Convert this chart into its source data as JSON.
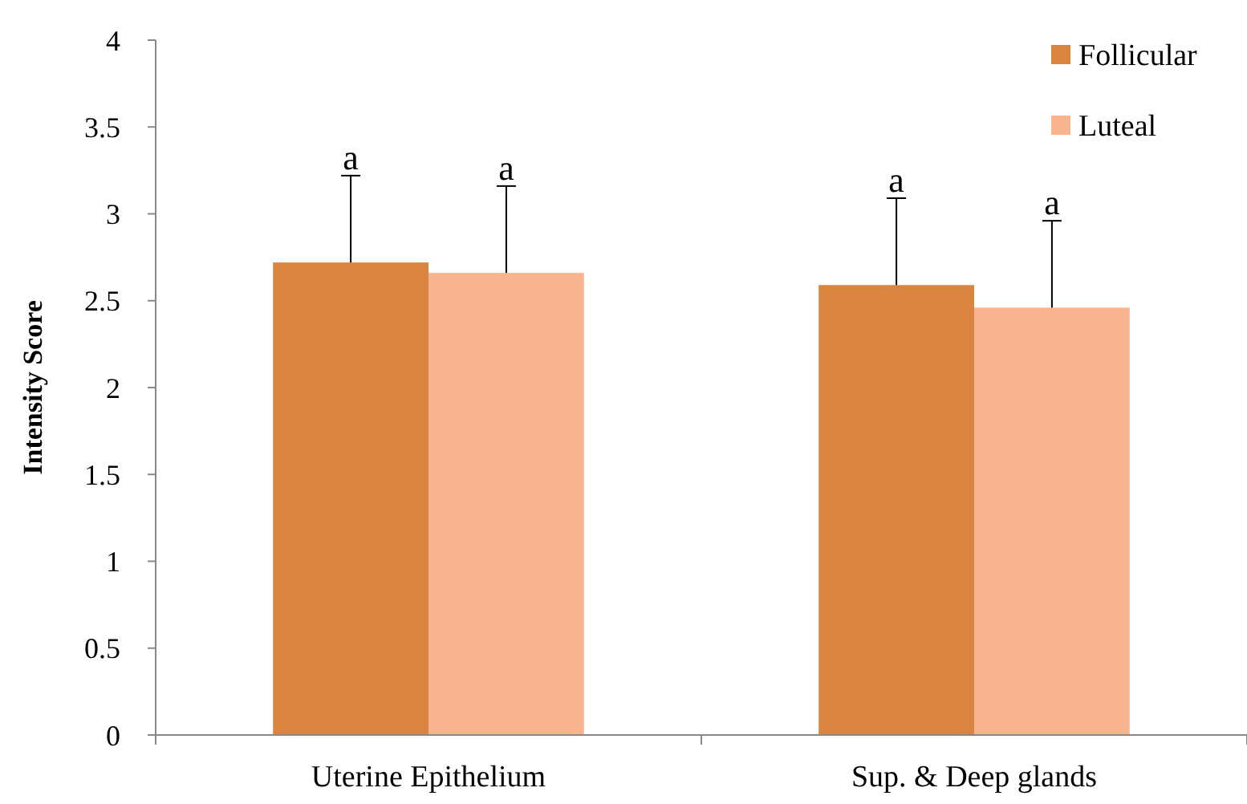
{
  "chart_data": {
    "type": "bar",
    "ylabel": "Intensity Score",
    "categories": [
      "Uterine Epithelium",
      "Sup. & Deep glands"
    ],
    "series": [
      {
        "name": "Follicular",
        "color": "#d9843f",
        "values": [
          2.72,
          2.59
        ],
        "errors": [
          [
            2.72,
            3.22
          ],
          [
            2.59,
            3.09
          ]
        ]
      },
      {
        "name": "Luteal",
        "color": "#f8b48f",
        "values": [
          2.66,
          2.46
        ],
        "errors": [
          [
            2.66,
            3.16
          ],
          [
            2.46,
            2.96
          ]
        ]
      }
    ],
    "annotations": [
      "a",
      "a",
      "a",
      "a"
    ],
    "ylim": [
      0,
      4
    ],
    "yticks": [
      0,
      0.5,
      1,
      1.5,
      2,
      2.5,
      3,
      3.5,
      4
    ],
    "grid": false,
    "legend": "top right"
  }
}
